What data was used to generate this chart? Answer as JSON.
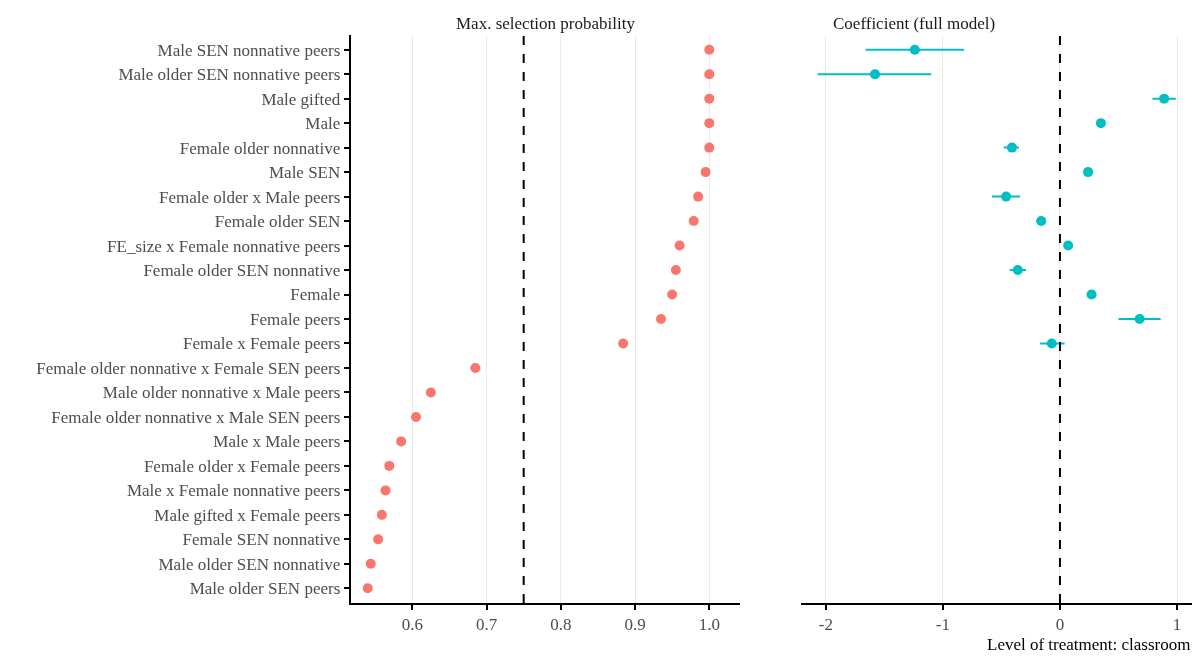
{
  "chart_data": [
    {
      "type": "scatter",
      "orientation": "horizontal",
      "title": "Max. selection probability",
      "categories": [
        "Male SEN nonnative peers",
        "Male older SEN nonnative peers",
        "Male gifted",
        "Male",
        "Female older nonnative",
        "Male SEN",
        "Female older x Male peers",
        "Female older SEN",
        "FE_size x Female nonnative peers",
        "Female older SEN nonnative",
        "Female",
        "Female peers",
        "Female x Female peers",
        "Female older nonnative x Female SEN peers",
        "Male older nonnative x Male peers",
        "Female older nonnative x Male SEN peers",
        "Male x Male peers",
        "Female older x Female peers",
        "Male x Female nonnative peers",
        "Male gifted x Female peers",
        "Female SEN nonnative",
        "Male older SEN nonnative",
        "Male older SEN peers"
      ],
      "series": [
        {
          "color": "#f8766d",
          "values": [
            1.0,
            1.0,
            1.0,
            1.0,
            1.0,
            0.995,
            0.985,
            0.979,
            0.96,
            0.955,
            0.95,
            0.935,
            0.884,
            0.685,
            0.625,
            0.605,
            0.585,
            0.569,
            0.564,
            0.559,
            0.554,
            0.544,
            0.54
          ]
        }
      ],
      "xlim": [
        0.517,
        1.042
      ],
      "xticks": [
        {
          "value": 0.6,
          "label": "0.6"
        },
        {
          "value": 0.7,
          "label": "0.7"
        },
        {
          "value": 0.8,
          "label": "0.8"
        },
        {
          "value": 0.9,
          "label": "0.9"
        },
        {
          "value": 1.0,
          "label": "1.0"
        }
      ],
      "ref_lines": [
        {
          "axis": "x",
          "value": 0.75,
          "color": "#000000",
          "line_style": "dashed"
        }
      ],
      "grid": "x",
      "marker": "circle"
    },
    {
      "type": "scatter",
      "orientation": "horizontal",
      "title": "Coefficient (full model)",
      "xlabel": "Level of treatment: classroom",
      "categories": [
        "Male SEN nonnative peers",
        "Male older SEN nonnative peers",
        "Male gifted",
        "Male",
        "Female older nonnative",
        "Male SEN",
        "Female older x Male peers",
        "Female older SEN",
        "FE_size x Female nonnative peers",
        "Female older SEN nonnative",
        "Female",
        "Female peers",
        "Female x Female peers",
        "Female older nonnative x Female SEN peers",
        "Male older nonnative x Male peers",
        "Female older nonnative x Male SEN peers",
        "Male x Male peers",
        "Female older x Female peers",
        "Male x Female nonnative peers",
        "Male gifted x Female peers",
        "Female SEN nonnative",
        "Male older SEN nonnative",
        "Male older SEN peers"
      ],
      "series": [
        {
          "color": "#00bfc4",
          "values": [
            -1.24,
            -1.58,
            0.89,
            0.35,
            -0.41,
            0.24,
            -0.46,
            -0.16,
            0.07,
            -0.36,
            0.27,
            0.68,
            -0.07,
            null,
            null,
            null,
            null,
            null,
            null,
            null,
            null,
            null,
            null
          ],
          "errors": [
            [
              -1.66,
              -0.82
            ],
            [
              -2.07,
              -1.1
            ],
            [
              0.79,
              0.99
            ],
            null,
            [
              -0.48,
              -0.35
            ],
            null,
            [
              -0.58,
              -0.34
            ],
            [
              -0.2,
              -0.13
            ],
            null,
            [
              -0.43,
              -0.29
            ],
            [
              0.24,
              0.31
            ],
            [
              0.5,
              0.86
            ],
            [
              -0.17,
              0.04
            ],
            null,
            null,
            null,
            null,
            null,
            null,
            null,
            null,
            null,
            null
          ]
        }
      ],
      "xlim": [
        -2.21,
        1.13
      ],
      "xticks": [
        -2,
        -1,
        0,
        1
      ],
      "ref_lines": [
        {
          "axis": "x",
          "value": 0,
          "color": "#000000",
          "line_style": "dashed"
        }
      ],
      "grid": "x",
      "marker": "circle",
      "tick_labels": "x"
    }
  ]
}
